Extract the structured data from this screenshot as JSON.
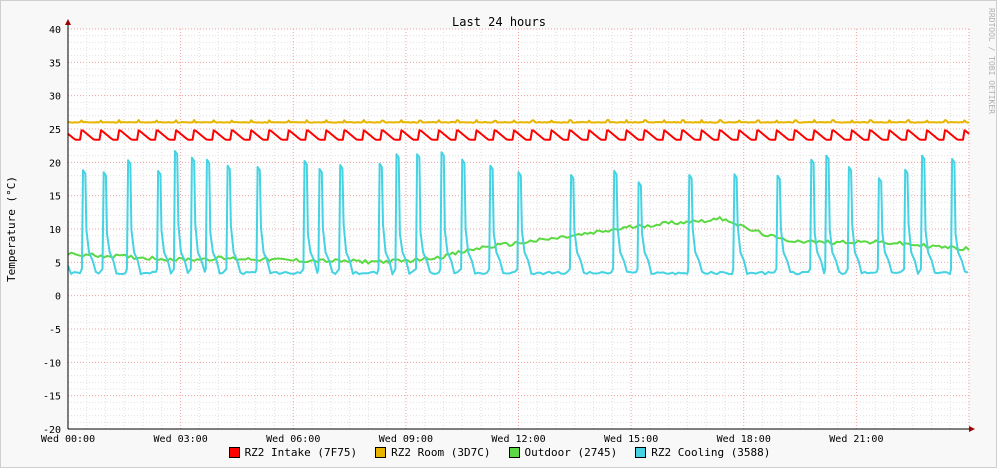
{
  "watermark": "RRDTOOL / TOBI OETIKER",
  "chart_data": {
    "type": "line",
    "title": "Last 24 hours",
    "ylabel": "Temperature (°C)",
    "xlabel": "",
    "ylim": [
      -20,
      40
    ],
    "yticks": [
      40,
      35,
      30,
      25,
      20,
      15,
      10,
      5,
      0,
      -5,
      -10,
      -15,
      -20
    ],
    "xlim": [
      0,
      24
    ],
    "xticks": [
      {
        "hour": 0,
        "label": "Wed 00:00"
      },
      {
        "hour": 3,
        "label": "Wed 03:00"
      },
      {
        "hour": 6,
        "label": "Wed 06:00"
      },
      {
        "hour": 9,
        "label": "Wed 09:00"
      },
      {
        "hour": 12,
        "label": "Wed 12:00"
      },
      {
        "hour": 15,
        "label": "Wed 15:00"
      },
      {
        "hour": 18,
        "label": "Wed 18:00"
      },
      {
        "hour": 21,
        "label": "Wed 21:00"
      }
    ],
    "grid": true,
    "series": [
      {
        "name": "RZ2 Intake (7F75)",
        "color": "#ff0000",
        "style": "sawtooth",
        "baseline": 23.4,
        "peak": 24.8,
        "period_h": 0.5,
        "start_h": 0.35
      },
      {
        "name": "RZ2 Room (3D7C)",
        "color": "#e8b400",
        "style": "flat",
        "baseline": 26.0,
        "peak": 26.5,
        "period_h": 0.5,
        "start_h": 0.35
      },
      {
        "name": "Outdoor (2745)",
        "color": "#5ad942",
        "style": "curve",
        "points": [
          [
            0.0,
            6.2
          ],
          [
            1.0,
            6.0
          ],
          [
            2.0,
            5.7
          ],
          [
            3.0,
            5.4
          ],
          [
            4.0,
            5.6
          ],
          [
            5.0,
            5.5
          ],
          [
            6.0,
            5.3
          ],
          [
            7.0,
            5.2
          ],
          [
            8.0,
            5.1
          ],
          [
            9.0,
            5.2
          ],
          [
            10.0,
            5.9
          ],
          [
            11.0,
            7.2
          ],
          [
            12.0,
            7.9
          ],
          [
            13.0,
            8.6
          ],
          [
            14.0,
            9.4
          ],
          [
            15.0,
            10.3
          ],
          [
            16.0,
            10.9
          ],
          [
            17.0,
            11.3
          ],
          [
            17.5,
            11.6
          ],
          [
            18.0,
            10.2
          ],
          [
            19.0,
            8.4
          ],
          [
            20.0,
            8.0
          ],
          [
            21.0,
            8.1
          ],
          [
            22.0,
            7.9
          ],
          [
            23.0,
            7.4
          ],
          [
            24.0,
            7.0
          ]
        ]
      },
      {
        "name": "RZ2 Cooling (3588)",
        "color": "#45d3e3",
        "style": "spikes",
        "baseline": 4.0,
        "peak_hours": [
          0.4,
          0.95,
          1.6,
          2.4,
          2.85,
          3.3,
          3.7,
          4.25,
          5.05,
          6.3,
          6.7,
          7.25,
          8.3,
          8.75,
          9.3,
          9.95,
          10.5,
          11.25,
          12.0,
          13.4,
          14.55,
          15.2,
          16.55,
          17.75,
          18.9,
          19.8,
          20.2,
          20.8,
          21.6,
          22.3,
          22.75,
          23.55
        ],
        "peak_values": [
          18.8,
          18.5,
          20.3,
          18.7,
          21.7,
          20.7,
          20.4,
          19.5,
          19.3,
          20.2,
          19.0,
          19.6,
          19.8,
          21.2,
          21.2,
          21.5,
          20.4,
          19.5,
          18.5,
          18.1,
          18.7,
          17.0,
          18.1,
          18.2,
          18.0,
          20.4,
          21.0,
          19.3,
          17.6,
          18.9,
          21.0,
          20.5
        ]
      }
    ]
  }
}
